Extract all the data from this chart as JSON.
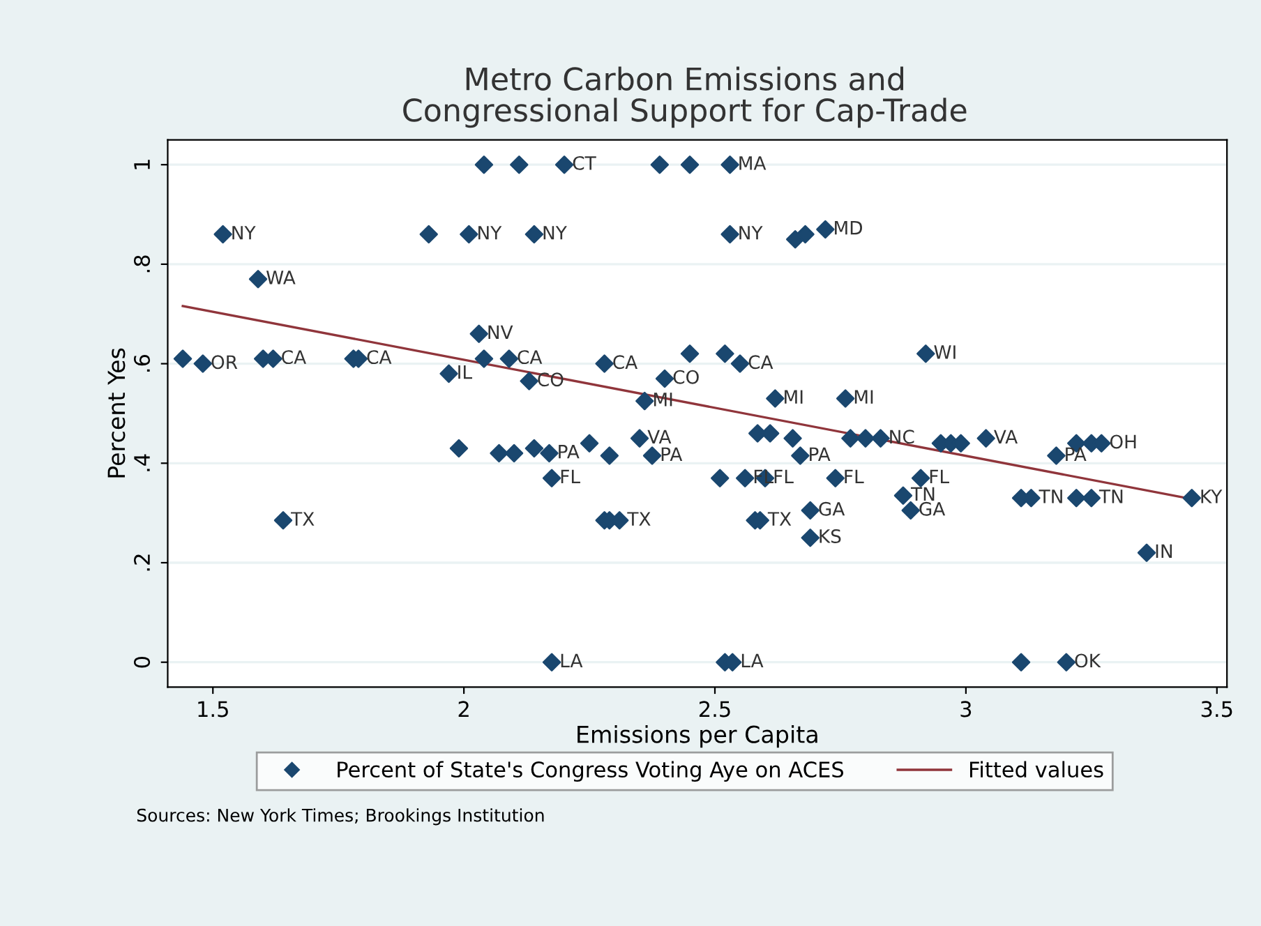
{
  "chart_data": {
    "type": "scatter",
    "title": "Metro Carbon Emissions and\nCongressional Support for Cap-Trade",
    "xlabel": "Emissions per Capita",
    "ylabel": "Percent Yes",
    "xlim": [
      1.41,
      3.52
    ],
    "ylim": [
      -0.05,
      1.05
    ],
    "xticks": [
      1.5,
      2,
      2.5,
      3,
      3.5
    ],
    "yticks": [
      {
        "value": 0,
        "label": "0"
      },
      {
        "value": 0.2,
        "label": ".2"
      },
      {
        "value": 0.4,
        "label": ".4"
      },
      {
        "value": 0.6,
        "label": ".6"
      },
      {
        "value": 0.8,
        "label": ".8"
      },
      {
        "value": 1,
        "label": "1"
      }
    ],
    "grid": "y",
    "legend": "bottom",
    "series": [
      {
        "name": "Percent of State's Congress Voting Aye on ACES",
        "marker": "diamond",
        "color": "#1a476f",
        "x": [
          1.44,
          1.48,
          1.52,
          1.59,
          1.6,
          1.62,
          1.64,
          1.78,
          1.79,
          1.93,
          1.97,
          1.99,
          2.01,
          2.03,
          2.04,
          2.04,
          2.07,
          2.09,
          2.1,
          2.11,
          2.13,
          2.14,
          2.14,
          2.17,
          2.175,
          2.175,
          2.2,
          2.25,
          2.28,
          2.28,
          2.29,
          2.29,
          2.31,
          2.35,
          2.36,
          2.375,
          2.39,
          2.4,
          2.45,
          2.45,
          2.51,
          2.52,
          2.52,
          2.53,
          2.53,
          2.535,
          2.55,
          2.56,
          2.58,
          2.585,
          2.59,
          2.6,
          2.61,
          2.62,
          2.655,
          2.66,
          2.67,
          2.68,
          2.69,
          2.69,
          2.72,
          2.74,
          2.76,
          2.77,
          2.8,
          2.83,
          2.875,
          2.89,
          2.91,
          2.92,
          2.95,
          2.97,
          2.99,
          3.04,
          3.11,
          3.11,
          3.13,
          3.18,
          3.2,
          3.22,
          3.22,
          3.25,
          3.25,
          3.27,
          3.36,
          3.45
        ],
        "values": [
          0.61,
          0.6,
          0.86,
          0.77,
          0.61,
          0.61,
          0.285,
          0.61,
          0.61,
          0.86,
          0.58,
          0.43,
          0.86,
          0.66,
          1.0,
          0.61,
          0.42,
          0.61,
          0.42,
          1.0,
          0.565,
          0.86,
          0.43,
          0.42,
          0.37,
          0.0,
          1.0,
          0.44,
          0.6,
          0.285,
          0.415,
          0.285,
          0.285,
          0.45,
          0.525,
          0.415,
          1.0,
          0.57,
          1.0,
          0.62,
          0.37,
          0.62,
          0.0,
          0.86,
          1.0,
          0.0,
          0.6,
          0.37,
          0.285,
          0.46,
          0.285,
          0.37,
          0.46,
          0.53,
          0.45,
          0.85,
          0.415,
          0.86,
          0.305,
          0.25,
          0.87,
          0.37,
          0.53,
          0.45,
          0.45,
          0.45,
          0.335,
          0.305,
          0.37,
          0.62,
          0.44,
          0.44,
          0.44,
          0.45,
          0.33,
          0.0,
          0.33,
          0.415,
          0.0,
          0.44,
          0.33,
          0.44,
          0.33,
          0.44,
          0.22,
          0.33
        ],
        "value_labels": [
          null,
          "OR",
          "NY",
          "WA",
          null,
          "CA",
          "TX",
          null,
          "CA",
          null,
          "IL",
          null,
          "NY",
          "NV",
          null,
          null,
          null,
          "CA",
          null,
          null,
          "CO",
          "NY",
          null,
          "PA",
          "FL",
          "LA",
          "CT",
          null,
          "CA",
          null,
          null,
          null,
          "TX",
          "VA",
          "MI",
          "PA",
          null,
          "CO",
          null,
          null,
          null,
          null,
          null,
          "NY",
          "MA",
          "LA",
          "CA",
          "FL",
          null,
          null,
          "TX",
          "FL",
          null,
          "MI",
          null,
          null,
          "PA",
          null,
          "GA",
          "KS",
          "MD",
          "FL",
          "MI",
          null,
          null,
          "NC",
          "TN",
          "GA",
          "FL",
          "WI",
          null,
          null,
          null,
          "VA",
          null,
          null,
          "TN",
          "PA",
          "OK",
          null,
          null,
          null,
          "TN",
          "OH",
          "IN",
          "KY"
        ]
      },
      {
        "name": "Fitted values",
        "type": "line",
        "marker": "none",
        "color": "#90353b",
        "x": [
          1.44,
          3.46
        ],
        "values": [
          0.716,
          0.326
        ]
      }
    ],
    "annotations": [
      "Sources: New York Times; Brookings Institution"
    ]
  }
}
